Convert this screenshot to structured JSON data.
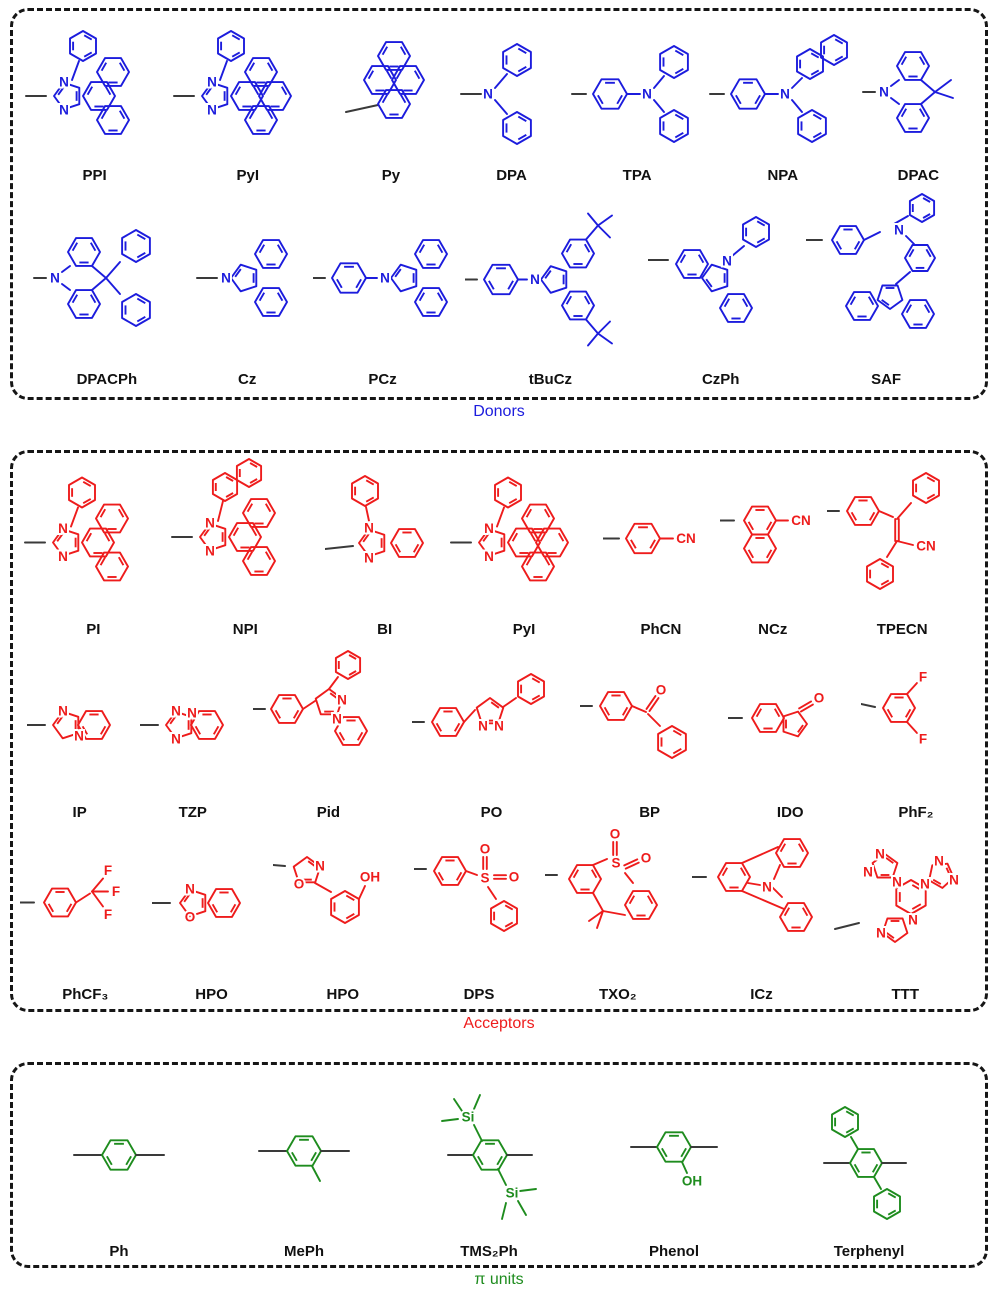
{
  "figure": {
    "sections": [
      {
        "id": "donors",
        "title": "Donors",
        "color": "#1c1cdd",
        "rows": [
          [
            {
              "label": "PPI",
              "struct": "pim",
              "atoms": [
                "N",
                "N"
              ]
            },
            {
              "label": "PyI",
              "struct": "pyim",
              "atoms": [
                "N",
                "N"
              ]
            },
            {
              "label": "Py",
              "struct": "py",
              "atoms": []
            },
            {
              "label": "DPA",
              "struct": "dpa",
              "atoms": [
                "N"
              ]
            },
            {
              "label": "TPA",
              "struct": "tpa",
              "atoms": [
                "N"
              ]
            },
            {
              "label": "NPA",
              "struct": "npa",
              "atoms": [
                "N"
              ]
            },
            {
              "label": "DPAC",
              "struct": "dpac",
              "atoms": [
                "N"
              ]
            }
          ],
          [
            {
              "label": "DPACPh",
              "struct": "dpacph",
              "atoms": [
                "N"
              ]
            },
            {
              "label": "Cz",
              "struct": "cz",
              "atoms": [
                "N"
              ]
            },
            {
              "label": "PCz",
              "struct": "pcz",
              "atoms": [
                "N"
              ]
            },
            {
              "label": "tBuCz",
              "struct": "tbucz",
              "atoms": [
                "N"
              ]
            },
            {
              "label": "CzPh",
              "struct": "czph",
              "atoms": [
                "N"
              ]
            },
            {
              "label": "SAF",
              "struct": "saf",
              "atoms": [
                "N"
              ]
            }
          ]
        ]
      },
      {
        "id": "acceptors",
        "title": "Acceptors",
        "color": "#ee1c1c",
        "rows": [
          [
            {
              "label": "PI",
              "struct": "pim",
              "atoms": [
                "N",
                "N"
              ]
            },
            {
              "label": "NPI",
              "struct": "npi",
              "atoms": [
                "N",
                "N"
              ]
            },
            {
              "label": "BI",
              "struct": "bi",
              "atoms": [
                "N",
                "N"
              ]
            },
            {
              "label": "PyI",
              "struct": "pyim",
              "atoms": [
                "N",
                "N"
              ]
            },
            {
              "label": "PhCN",
              "struct": "phcn",
              "atoms": [
                "CN"
              ]
            },
            {
              "label": "NCz",
              "struct": "ncz",
              "atoms": [
                "CN"
              ]
            },
            {
              "label": "TPECN",
              "struct": "tpecn",
              "atoms": [
                "CN"
              ]
            }
          ],
          [
            {
              "label": "IP",
              "struct": "ip",
              "atoms": [
                "N",
                "N"
              ]
            },
            {
              "label": "TZP",
              "struct": "tzp",
              "atoms": [
                "N",
                "N",
                "N"
              ]
            },
            {
              "label": "Pid",
              "struct": "pid",
              "atoms": [
                "N",
                "N"
              ]
            },
            {
              "label": "PO",
              "struct": "po",
              "atoms": [
                "N",
                "N"
              ]
            },
            {
              "label": "BP",
              "struct": "bp",
              "atoms": [
                "O"
              ]
            },
            {
              "label": "IDO",
              "struct": "ido",
              "atoms": [
                "O"
              ]
            },
            {
              "label": "PhF₂",
              "struct": "phf2",
              "atoms": [
                "F",
                "F"
              ]
            }
          ],
          [
            {
              "label": "PhCF₃",
              "struct": "phcf3",
              "atoms": [
                "F",
                "F",
                "F"
              ]
            },
            {
              "label": "HPO",
              "struct": "hpo_a",
              "atoms": [
                "N",
                "O"
              ]
            },
            {
              "label": "HPO",
              "struct": "hpo_b",
              "atoms": [
                "N",
                "O",
                "OH"
              ]
            },
            {
              "label": "DPS",
              "struct": "dps",
              "atoms": [
                "S",
                "O",
                "O"
              ]
            },
            {
              "label": "TXO₂",
              "struct": "txo2",
              "atoms": [
                "S",
                "O",
                "O"
              ]
            },
            {
              "label": "ICz",
              "struct": "icz",
              "atoms": [
                "N"
              ]
            },
            {
              "label": "TTT",
              "struct": "ttt",
              "atoms": [
                "N",
                "N",
                "N",
                "N",
                "N",
                "N",
                "N",
                "N"
              ]
            }
          ]
        ]
      },
      {
        "id": "pi_units",
        "title": "π units",
        "color": "#1e8c1e",
        "rows": [
          [
            {
              "label": "Ph",
              "struct": "ph",
              "atoms": []
            },
            {
              "label": "MePh",
              "struct": "meph",
              "atoms": []
            },
            {
              "label": "TMS₂Ph",
              "struct": "tms2ph",
              "atoms": [
                "Si",
                "Si"
              ]
            },
            {
              "label": "Phenol",
              "struct": "phenol",
              "atoms": [
                "OH"
              ]
            },
            {
              "label": "Terphenyl",
              "struct": "terphenyl",
              "atoms": []
            }
          ]
        ]
      }
    ],
    "stub_color": "#3a3a3a"
  }
}
